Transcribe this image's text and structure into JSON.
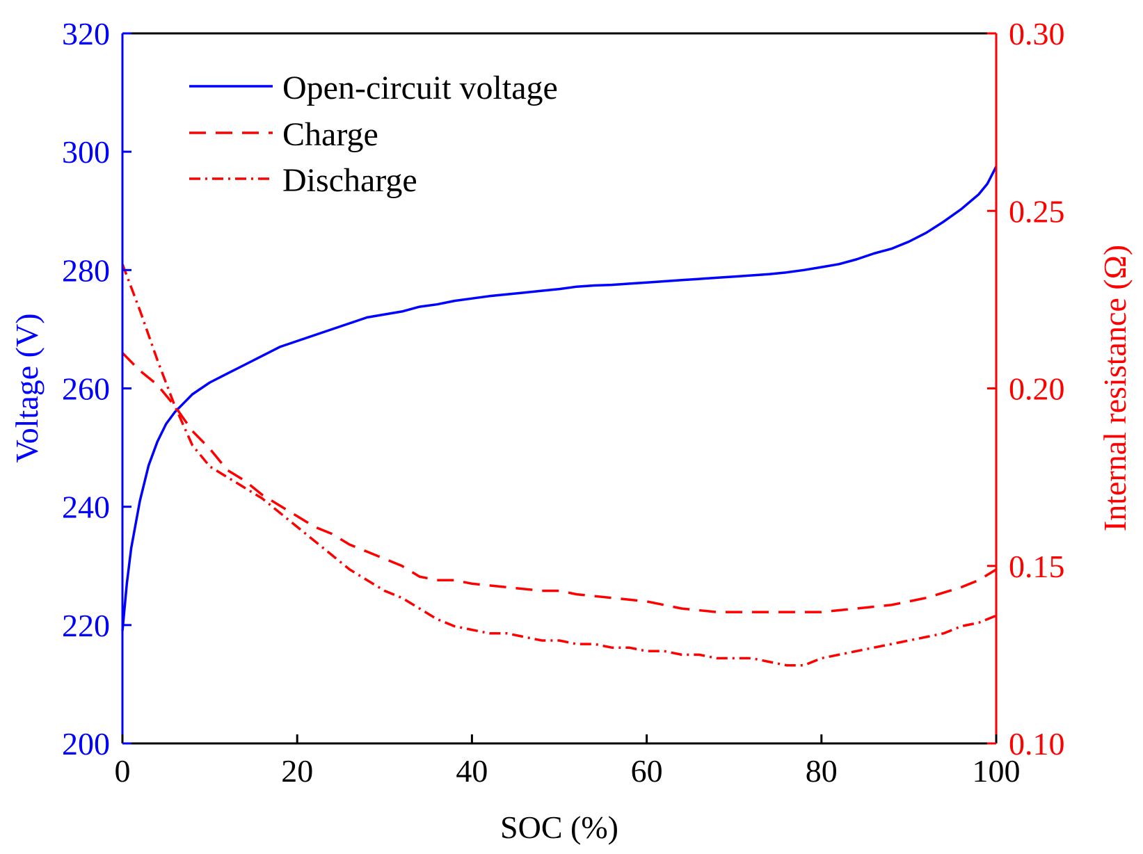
{
  "chart_data": {
    "type": "line",
    "title": "",
    "xlabel": "SOC (%)",
    "ylabel_left": "Voltage (V)",
    "ylabel_right": "Internal resistance (Ω)",
    "xlim": [
      0,
      100
    ],
    "ylim_left": [
      200,
      320
    ],
    "ylim_right": [
      0.1,
      0.3
    ],
    "x_ticks": [
      "0",
      "20",
      "40",
      "60",
      "80",
      "100"
    ],
    "x_tick_values": [
      0,
      20,
      40,
      60,
      80,
      100
    ],
    "y_left_ticks": [
      "200",
      "220",
      "240",
      "260",
      "280",
      "300",
      "320"
    ],
    "y_left_tick_values": [
      200,
      220,
      240,
      260,
      280,
      300,
      320
    ],
    "y_right_ticks": [
      "0.10",
      "0.15",
      "0.20",
      "0.25",
      "0.30"
    ],
    "y_right_tick_values": [
      0.1,
      0.15,
      0.2,
      0.25,
      0.3
    ],
    "legend_position": "top-left",
    "colors": {
      "left_axis": "#0000ff",
      "right_axis": "#ff0000",
      "frame": "#000000"
    },
    "series": [
      {
        "name": "Open-circuit voltage",
        "axis": "left",
        "color": "#0000ff",
        "style": "solid",
        "x": [
          0,
          0.5,
          1,
          2,
          3,
          4,
          5,
          6,
          7,
          8,
          9,
          10,
          12,
          14,
          16,
          18,
          20,
          22,
          24,
          26,
          28,
          30,
          32,
          34,
          36,
          38,
          40,
          42,
          44,
          46,
          48,
          50,
          52,
          54,
          56,
          58,
          60,
          62,
          64,
          66,
          68,
          70,
          72,
          74,
          76,
          78,
          80,
          82,
          84,
          86,
          88,
          90,
          92,
          94,
          96,
          98,
          99,
          100
        ],
        "values": [
          219,
          227,
          233,
          241,
          247,
          251,
          254,
          256,
          257.5,
          259,
          260,
          261,
          262.5,
          264,
          265.5,
          267,
          268,
          269,
          270,
          271,
          272,
          272.5,
          273,
          273.8,
          274.2,
          274.8,
          275.2,
          275.6,
          275.9,
          276.2,
          276.5,
          276.8,
          277.2,
          277.4,
          277.5,
          277.7,
          277.9,
          278.1,
          278.3,
          278.5,
          278.7,
          278.9,
          279.1,
          279.3,
          279.6,
          280.0,
          280.5,
          281.0,
          281.8,
          282.8,
          283.6,
          284.8,
          286.3,
          288.2,
          290.3,
          292.8,
          294.6,
          297.5
        ]
      },
      {
        "name": "Charge",
        "axis": "right",
        "color": "#ff0000",
        "style": "dashed",
        "x": [
          0,
          2,
          4,
          6,
          8,
          10,
          12,
          14,
          16,
          18,
          20,
          22,
          24,
          26,
          28,
          30,
          32,
          34,
          36,
          38,
          40,
          44,
          48,
          50,
          52,
          56,
          60,
          64,
          68,
          72,
          76,
          78,
          80,
          84,
          88,
          92,
          96,
          98,
          100
        ],
        "values": [
          0.21,
          0.205,
          0.201,
          0.195,
          0.188,
          0.183,
          0.177,
          0.174,
          0.17,
          0.167,
          0.164,
          0.161,
          0.159,
          0.156,
          0.154,
          0.152,
          0.15,
          0.147,
          0.146,
          0.146,
          0.145,
          0.144,
          0.143,
          0.143,
          0.142,
          0.141,
          0.14,
          0.138,
          0.137,
          0.137,
          0.137,
          0.137,
          0.137,
          0.138,
          0.139,
          0.141,
          0.144,
          0.146,
          0.149
        ]
      },
      {
        "name": "Discharge",
        "axis": "right",
        "color": "#ff0000",
        "style": "dashdot",
        "x": [
          0,
          2,
          4,
          6,
          8,
          10,
          12,
          14,
          16,
          18,
          20,
          22,
          24,
          26,
          28,
          30,
          32,
          34,
          36,
          38,
          40,
          42,
          44,
          46,
          48,
          50,
          52,
          54,
          56,
          58,
          60,
          62,
          64,
          66,
          68,
          70,
          72,
          74,
          76,
          78,
          80,
          82,
          84,
          86,
          88,
          90,
          92,
          94,
          96,
          98,
          100
        ],
        "values": [
          0.235,
          0.222,
          0.208,
          0.195,
          0.184,
          0.178,
          0.175,
          0.172,
          0.169,
          0.165,
          0.161,
          0.157,
          0.153,
          0.149,
          0.146,
          0.143,
          0.141,
          0.138,
          0.135,
          0.133,
          0.132,
          0.131,
          0.131,
          0.13,
          0.129,
          0.129,
          0.128,
          0.128,
          0.127,
          0.127,
          0.126,
          0.126,
          0.125,
          0.125,
          0.124,
          0.124,
          0.124,
          0.123,
          0.122,
          0.122,
          0.124,
          0.125,
          0.126,
          0.127,
          0.128,
          0.129,
          0.13,
          0.131,
          0.133,
          0.134,
          0.136
        ]
      }
    ]
  }
}
